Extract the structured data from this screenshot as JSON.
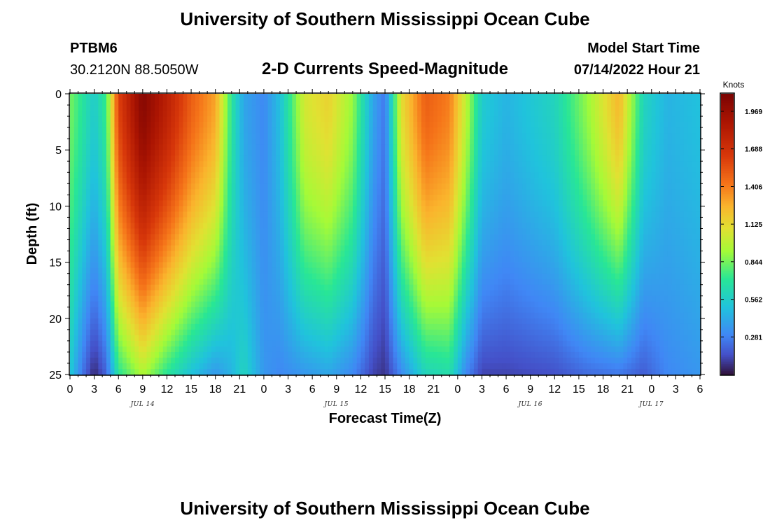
{
  "header": {
    "title": "University of Southern Mississippi Ocean Cube",
    "station": "PTBM6",
    "coords": "30.2120N  88.5050W",
    "subtitle": "2-D Currents Speed-Magnitude",
    "model_start_label": "Model Start Time",
    "model_start_value": "07/14/2022 Hour 21"
  },
  "footer": {
    "title": "University of Southern Mississippi Ocean Cube"
  },
  "chart_data": {
    "type": "heatmap",
    "xlabel": "Forecast Time(Z)",
    "ylabel": "Depth (ft)",
    "x_hours_range": [
      0,
      78
    ],
    "y_depth_range": [
      0,
      25
    ],
    "x_tick_labels": [
      "0",
      "3",
      "6",
      "9",
      "12",
      "15",
      "18",
      "21",
      "0",
      "3",
      "6",
      "9",
      "12",
      "15",
      "18",
      "21",
      "0",
      "3",
      "6",
      "9",
      "12",
      "15",
      "18",
      "21",
      "0",
      "3",
      "6"
    ],
    "y_tick_labels": [
      "0",
      "5",
      "10",
      "15",
      "20",
      "25"
    ],
    "date_labels": [
      {
        "hour": 9,
        "label": "JUL 14"
      },
      {
        "hour": 33,
        "label": "JUL 15"
      },
      {
        "hour": 57,
        "label": "JUL 16"
      },
      {
        "hour": 72,
        "label": "JUL 17"
      }
    ],
    "colorbar": {
      "unit": "Knots",
      "min": 0.0,
      "max": 2.1,
      "tick_labels": [
        "1.969",
        "1.688",
        "1.406",
        "1.125",
        "0.844",
        "0.562",
        "0.281"
      ]
    },
    "value_profiles": [
      {
        "hour": 0.0,
        "surface": 0.85,
        "bottom": 0.55
      },
      {
        "hour": 1.5,
        "surface": 0.7,
        "bottom": 0.25
      },
      {
        "hour": 3.0,
        "surface": 0.55,
        "bottom": 0.05
      },
      {
        "hour": 4.5,
        "surface": 0.75,
        "bottom": 0.2
      },
      {
        "hour": 6.0,
        "surface": 1.6,
        "bottom": 0.7
      },
      {
        "hour": 9.0,
        "surface": 2.05,
        "bottom": 0.95
      },
      {
        "hour": 12.0,
        "surface": 1.8,
        "bottom": 0.7
      },
      {
        "hour": 15.0,
        "surface": 1.5,
        "bottom": 0.5
      },
      {
        "hour": 18.0,
        "surface": 1.3,
        "bottom": 0.35
      },
      {
        "hour": 20.0,
        "surface": 0.7,
        "bottom": 0.45
      },
      {
        "hour": 21.5,
        "surface": 0.4,
        "bottom": 0.6
      },
      {
        "hour": 24.0,
        "surface": 0.3,
        "bottom": 0.35
      },
      {
        "hour": 26.0,
        "surface": 0.5,
        "bottom": 0.3
      },
      {
        "hour": 29.0,
        "surface": 1.05,
        "bottom": 0.35
      },
      {
        "hour": 32.0,
        "surface": 1.15,
        "bottom": 0.4
      },
      {
        "hour": 35.0,
        "surface": 0.9,
        "bottom": 0.3
      },
      {
        "hour": 37.5,
        "surface": 0.4,
        "bottom": 0.12
      },
      {
        "hour": 39.0,
        "surface": 0.25,
        "bottom": 0.08
      },
      {
        "hour": 41.0,
        "surface": 1.1,
        "bottom": 0.3
      },
      {
        "hour": 44.0,
        "surface": 1.5,
        "bottom": 0.6
      },
      {
        "hour": 47.0,
        "surface": 1.4,
        "bottom": 0.65
      },
      {
        "hour": 49.0,
        "surface": 1.0,
        "bottom": 0.3
      },
      {
        "hour": 51.0,
        "surface": 0.55,
        "bottom": 0.12
      },
      {
        "hour": 54.0,
        "surface": 0.45,
        "bottom": 0.12
      },
      {
        "hour": 60.0,
        "surface": 0.6,
        "bottom": 0.15
      },
      {
        "hour": 64.0,
        "surface": 0.9,
        "bottom": 0.22
      },
      {
        "hour": 68.0,
        "surface": 1.25,
        "bottom": 0.25
      },
      {
        "hour": 71.0,
        "surface": 0.6,
        "bottom": 0.18
      },
      {
        "hour": 74.0,
        "surface": 0.45,
        "bottom": 0.3
      },
      {
        "hour": 78.0,
        "surface": 0.5,
        "bottom": 0.35
      }
    ]
  }
}
